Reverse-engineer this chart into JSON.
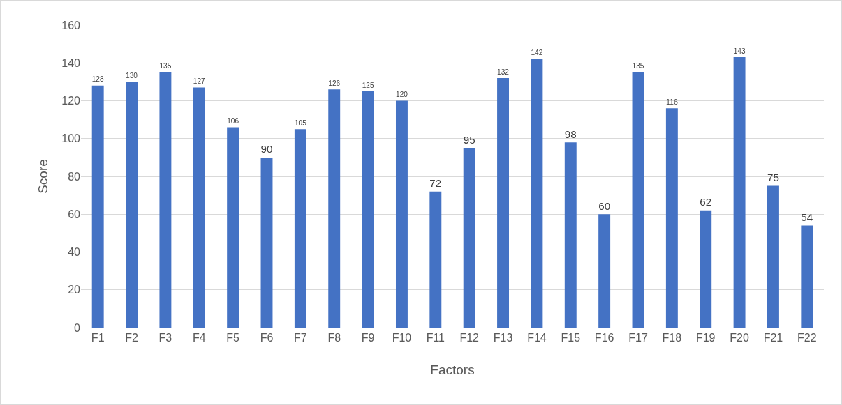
{
  "chart_data": {
    "type": "bar",
    "xlabel": "Factors",
    "ylabel": "Score",
    "categories": [
      "F1",
      "F2",
      "F3",
      "F4",
      "F5",
      "F6",
      "F7",
      "F8",
      "F9",
      "F10",
      "F11",
      "F12",
      "F13",
      "F14",
      "F15",
      "F16",
      "F17",
      "F18",
      "F19",
      "F20",
      "F21",
      "F22"
    ],
    "values": [
      128,
      130,
      135,
      127,
      106,
      90,
      105,
      126,
      125,
      120,
      72,
      95,
      132,
      142,
      98,
      60,
      135,
      116,
      62,
      143,
      75,
      54
    ],
    "color": "#4472c4",
    "ylim": [
      0,
      160
    ],
    "yticks": [
      0,
      20,
      40,
      60,
      80,
      100,
      120,
      140,
      160
    ],
    "grid": "y",
    "data_labels": true,
    "legend": false
  }
}
